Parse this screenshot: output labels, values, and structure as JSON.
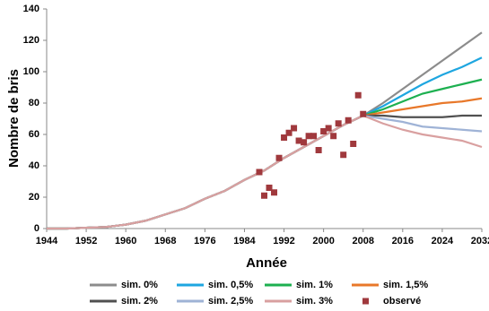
{
  "chart_data": {
    "type": "line",
    "x_label": "Année",
    "y_label": "Nombre de bris",
    "x": [
      1944,
      1948,
      1952,
      1956,
      1960,
      1964,
      1968,
      1972,
      1976,
      1980,
      1984,
      1988,
      1992,
      1996,
      2000,
      2004,
      2008,
      2012,
      2016,
      2020,
      2024,
      2028,
      2032
    ],
    "xlim": [
      1944,
      2032
    ],
    "xticks": [
      1944,
      1952,
      1960,
      1968,
      1976,
      1984,
      1992,
      2000,
      2008,
      2016,
      2024,
      2032
    ],
    "ylim": [
      0,
      140
    ],
    "yticks": [
      0,
      20,
      40,
      60,
      80,
      100,
      120,
      140
    ],
    "grid": false,
    "series": [
      {
        "name": "sim. 0%",
        "color": "#8c8c8c",
        "values": [
          0,
          0,
          0.5,
          1,
          2.5,
          5,
          9,
          13,
          19,
          24,
          31,
          37,
          45,
          52,
          59,
          66,
          72,
          80,
          89,
          98,
          107,
          116,
          125
        ]
      },
      {
        "name": "sim. 0,5%",
        "color": "#1ea6e0",
        "values": [
          0,
          0,
          0.5,
          1,
          2.5,
          5,
          9,
          13,
          19,
          24,
          31,
          37,
          45,
          52,
          59,
          66,
          72,
          78,
          85,
          92,
          98,
          103,
          109
        ]
      },
      {
        "name": "sim. 1%",
        "color": "#1db050",
        "values": [
          0,
          0,
          0.5,
          1,
          2.5,
          5,
          9,
          13,
          19,
          24,
          31,
          37,
          45,
          52,
          59,
          66,
          72,
          76,
          81,
          86,
          89,
          92,
          95
        ]
      },
      {
        "name": "sim. 1,5%",
        "color": "#e8782a",
        "values": [
          0,
          0,
          0.5,
          1,
          2.5,
          5,
          9,
          13,
          19,
          24,
          31,
          37,
          45,
          52,
          59,
          66,
          72,
          74,
          76,
          78,
          80,
          81,
          83
        ]
      },
      {
        "name": "sim. 2%",
        "color": "#505050",
        "values": [
          0,
          0,
          0.5,
          1,
          2.5,
          5,
          9,
          13,
          19,
          24,
          31,
          37,
          45,
          52,
          59,
          66,
          72,
          72,
          71,
          71,
          71,
          72,
          72
        ]
      },
      {
        "name": "sim. 2,5%",
        "color": "#9fb3d6",
        "values": [
          0,
          0,
          0.5,
          1,
          2.5,
          5,
          9,
          13,
          19,
          24,
          31,
          37,
          45,
          52,
          59,
          66,
          72,
          70,
          68,
          65,
          64,
          63,
          62
        ]
      },
      {
        "name": "sim. 3%",
        "color": "#d9a0a0",
        "values": [
          0,
          0,
          0.5,
          1,
          2.5,
          5,
          9,
          13,
          19,
          24,
          31,
          37,
          45,
          52,
          59,
          66,
          72,
          67,
          63,
          60,
          58,
          56,
          52
        ]
      },
      {
        "name": "observé",
        "type": "scatter",
        "color": "#a0393d",
        "x": [
          1987,
          1988,
          1989,
          1990,
          1991,
          1992,
          1993,
          1994,
          1995,
          1996,
          1997,
          1998,
          1999,
          2000,
          2001,
          2002,
          2003,
          2004,
          2005,
          2006,
          2007,
          2008
        ],
        "values": [
          36,
          21,
          26,
          23,
          45,
          58,
          61,
          64,
          56,
          55,
          59,
          59,
          50,
          62,
          64,
          59,
          67,
          47,
          69,
          54,
          85,
          73
        ]
      }
    ]
  }
}
